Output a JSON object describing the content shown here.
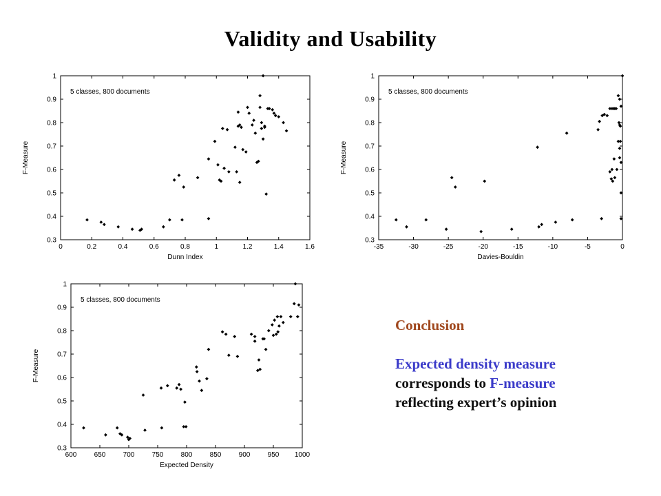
{
  "slide": {
    "title": "Validity  and  Usability",
    "conclusion": {
      "heading": "Conclusion",
      "line1": "Expected density measure",
      "line2_prefix": "corresponds to ",
      "line2_highlight": "F-measure",
      "line3": "reflecting expert’s opinion",
      "heading_color": "#a0481e",
      "highlight_color": "#3a3ac9"
    }
  },
  "chart_data": [
    {
      "type": "scatter",
      "annotation": "5 classes, 800 documents",
      "xlabel": "Dunn Index",
      "ylabel": "F-Measure",
      "xlim": [
        0,
        1.6
      ],
      "ylim": [
        0.3,
        1
      ],
      "xticks": [
        "0",
        "0.2",
        "0.4",
        "0.6",
        "0.8",
        "1",
        "1.2",
        "1.4",
        "1.6"
      ],
      "yticks": [
        "0.3",
        "0.4",
        "0.5",
        "0.6",
        "0.7",
        "0.8",
        "0.9",
        "1"
      ],
      "points": [
        [
          0.17,
          0.385
        ],
        [
          0.26,
          0.375
        ],
        [
          0.28,
          0.365
        ],
        [
          0.37,
          0.355
        ],
        [
          0.46,
          0.345
        ],
        [
          0.51,
          0.34
        ],
        [
          0.52,
          0.345
        ],
        [
          0.66,
          0.355
        ],
        [
          0.7,
          0.385
        ],
        [
          0.73,
          0.555
        ],
        [
          0.76,
          0.575
        ],
        [
          0.78,
          0.385
        ],
        [
          0.79,
          0.525
        ],
        [
          0.88,
          0.565
        ],
        [
          0.95,
          0.39
        ],
        [
          0.95,
          0.645
        ],
        [
          0.99,
          0.72
        ],
        [
          1.01,
          0.62
        ],
        [
          1.02,
          0.555
        ],
        [
          1.03,
          0.55
        ],
        [
          1.04,
          0.775
        ],
        [
          1.05,
          0.605
        ],
        [
          1.07,
          0.77
        ],
        [
          1.08,
          0.59
        ],
        [
          1.12,
          0.695
        ],
        [
          1.13,
          0.59
        ],
        [
          1.14,
          0.845
        ],
        [
          1.14,
          0.785
        ],
        [
          1.15,
          0.79
        ],
        [
          1.15,
          0.545
        ],
        [
          1.16,
          0.78
        ],
        [
          1.17,
          0.685
        ],
        [
          1.19,
          0.675
        ],
        [
          1.2,
          0.865
        ],
        [
          1.21,
          0.84
        ],
        [
          1.23,
          0.79
        ],
        [
          1.24,
          0.81
        ],
        [
          1.25,
          0.755
        ],
        [
          1.26,
          0.63
        ],
        [
          1.27,
          0.635
        ],
        [
          1.28,
          0.915
        ],
        [
          1.28,
          0.865
        ],
        [
          1.29,
          0.8
        ],
        [
          1.29,
          0.775
        ],
        [
          1.3,
          0.73
        ],
        [
          1.31,
          0.785
        ],
        [
          1.31,
          0.78
        ],
        [
          1.32,
          0.495
        ],
        [
          1.33,
          0.86
        ],
        [
          1.34,
          0.86
        ],
        [
          1.36,
          0.855
        ],
        [
          1.37,
          0.84
        ],
        [
          1.38,
          0.83
        ],
        [
          1.4,
          0.825
        ],
        [
          1.43,
          0.8
        ],
        [
          1.45,
          0.765
        ],
        [
          1.3,
          1.0
        ]
      ]
    },
    {
      "type": "scatter",
      "annotation": "5 classes, 800 documents",
      "xlabel": "Davies-Bouldin",
      "ylabel": "F-Measure",
      "xlim": [
        -35,
        0
      ],
      "ylim": [
        0.3,
        1
      ],
      "xticks": [
        "-35",
        "-30",
        "-25",
        "-20",
        "-15",
        "-10",
        "-5",
        "0"
      ],
      "yticks": [
        "0.3",
        "0.4",
        "0.5",
        "0.6",
        "0.7",
        "0.8",
        "0.9",
        "1"
      ],
      "points": [
        [
          -32.5,
          0.385
        ],
        [
          -31,
          0.355
        ],
        [
          -28.2,
          0.385
        ],
        [
          -25.3,
          0.345
        ],
        [
          -24.5,
          0.565
        ],
        [
          -24,
          0.525
        ],
        [
          -20.3,
          0.335
        ],
        [
          -19.8,
          0.55
        ],
        [
          -15.9,
          0.345
        ],
        [
          -12.2,
          0.695
        ],
        [
          -12,
          0.355
        ],
        [
          -11.6,
          0.365
        ],
        [
          -9.6,
          0.375
        ],
        [
          -8,
          0.755
        ],
        [
          -7.2,
          0.385
        ],
        [
          -3.5,
          0.77
        ],
        [
          -3.3,
          0.805
        ],
        [
          -3,
          0.39
        ],
        [
          -2.9,
          0.83
        ],
        [
          -2.6,
          0.835
        ],
        [
          -2.2,
          0.83
        ],
        [
          -1.8,
          0.86
        ],
        [
          -1.5,
          0.86
        ],
        [
          -1.3,
          0.86
        ],
        [
          -1.1,
          0.86
        ],
        [
          -0.9,
          0.86
        ],
        [
          -0.6,
          0.915
        ],
        [
          -0.4,
          0.9
        ],
        [
          -0.2,
          0.87
        ],
        [
          -0.5,
          0.8
        ],
        [
          -0.4,
          0.79
        ],
        [
          -0.3,
          0.785
        ],
        [
          -0.6,
          0.72
        ],
        [
          -0.4,
          0.69
        ],
        [
          -0.3,
          0.72
        ],
        [
          -1.2,
          0.645
        ],
        [
          -1.5,
          0.6
        ],
        [
          -1.8,
          0.59
        ],
        [
          -1.6,
          0.56
        ],
        [
          -1.4,
          0.55
        ],
        [
          -1.1,
          0.565
        ],
        [
          -0.8,
          0.6
        ],
        [
          -0.4,
          0.65
        ],
        [
          -0.2,
          0.63
        ],
        [
          -0.2,
          0.5
        ],
        [
          -0.2,
          0.39
        ],
        [
          0,
          1.0
        ]
      ]
    },
    {
      "type": "scatter",
      "annotation": "5 classes, 800 documents",
      "xlabel": "Expected Density",
      "ylabel": "F-Measure",
      "xlim": [
        600,
        1000
      ],
      "ylim": [
        0.3,
        1
      ],
      "xticks": [
        "600",
        "650",
        "700",
        "750",
        "800",
        "850",
        "900",
        "950",
        "1000"
      ],
      "yticks": [
        "0.3",
        "0.4",
        "0.5",
        "0.6",
        "0.7",
        "0.8",
        "0.9",
        "1"
      ],
      "points": [
        [
          622,
          0.385
        ],
        [
          660,
          0.355
        ],
        [
          680,
          0.385
        ],
        [
          685,
          0.36
        ],
        [
          688,
          0.355
        ],
        [
          698,
          0.345
        ],
        [
          700,
          0.335
        ],
        [
          702,
          0.34
        ],
        [
          725,
          0.525
        ],
        [
          728,
          0.375
        ],
        [
          756,
          0.555
        ],
        [
          757,
          0.385
        ],
        [
          767,
          0.565
        ],
        [
          783,
          0.555
        ],
        [
          787,
          0.57
        ],
        [
          790,
          0.55
        ],
        [
          795,
          0.39
        ],
        [
          797,
          0.495
        ],
        [
          799,
          0.39
        ],
        [
          817,
          0.645
        ],
        [
          818,
          0.625
        ],
        [
          822,
          0.585
        ],
        [
          826,
          0.545
        ],
        [
          835,
          0.595
        ],
        [
          838,
          0.72
        ],
        [
          862,
          0.795
        ],
        [
          868,
          0.785
        ],
        [
          873,
          0.695
        ],
        [
          883,
          0.775
        ],
        [
          888,
          0.69
        ],
        [
          912,
          0.785
        ],
        [
          918,
          0.775
        ],
        [
          918,
          0.755
        ],
        [
          923,
          0.63
        ],
        [
          925,
          0.675
        ],
        [
          927,
          0.635
        ],
        [
          932,
          0.765
        ],
        [
          934,
          0.765
        ],
        [
          937,
          0.72
        ],
        [
          942,
          0.8
        ],
        [
          948,
          0.825
        ],
        [
          950,
          0.78
        ],
        [
          952,
          0.845
        ],
        [
          955,
          0.785
        ],
        [
          957,
          0.86
        ],
        [
          958,
          0.795
        ],
        [
          960,
          0.82
        ],
        [
          963,
          0.86
        ],
        [
          967,
          0.835
        ],
        [
          980,
          0.86
        ],
        [
          986,
          0.915
        ],
        [
          992,
          0.86
        ],
        [
          994,
          0.91
        ],
        [
          988,
          1.0
        ]
      ]
    }
  ]
}
